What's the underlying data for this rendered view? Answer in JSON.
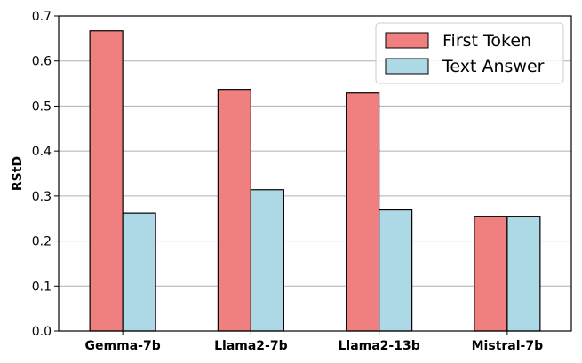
{
  "chart_data": {
    "type": "bar",
    "title": "",
    "xlabel": "",
    "ylabel": "RStD",
    "categories": [
      "Gemma-7b",
      "Llama2-7b",
      "Llama2-13b",
      "Mistral-7b"
    ],
    "series": [
      {
        "name": "First Token",
        "values": [
          0.667,
          0.537,
          0.529,
          0.255
        ],
        "color": "#f08080"
      },
      {
        "name": "Text Answer",
        "values": [
          0.262,
          0.314,
          0.269,
          0.255
        ],
        "color": "#add8e6"
      }
    ],
    "ylim": [
      0,
      0.7
    ],
    "yticks": [
      "0.0",
      "0.1",
      "0.2",
      "0.3",
      "0.4",
      "0.5",
      "0.6",
      "0.7"
    ],
    "grid": "horizontal",
    "legend": "top-right"
  }
}
